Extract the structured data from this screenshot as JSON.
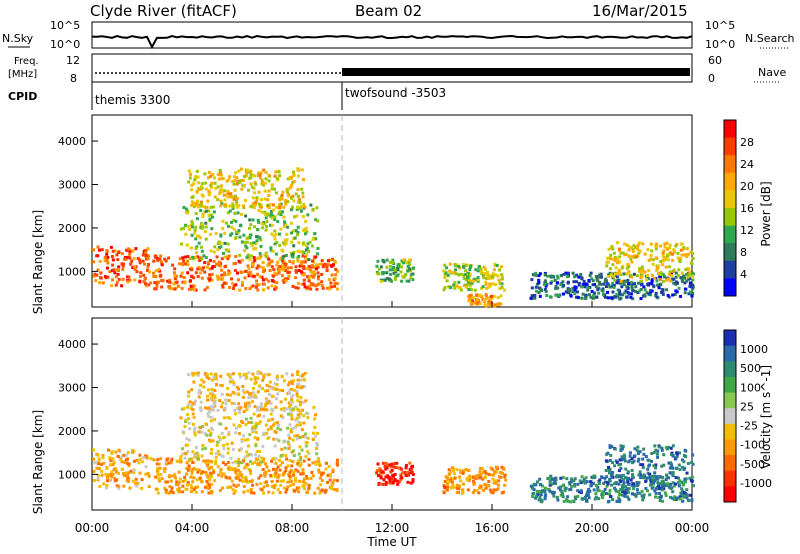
{
  "header": {
    "station": "Clyde River (fitACF)",
    "beam": "Beam 02",
    "date": "16/Mar/2015"
  },
  "summary_panels": {
    "nsky_label": "N.Sky",
    "nsearch_label": "N.Search",
    "nsky_ticks": [
      "10^5",
      "10^0"
    ],
    "nsearch_ticks": [
      "10^5",
      "10^0"
    ],
    "freq_label_1": "Freq.",
    "freq_label_2": "[MHz]",
    "freq_ticks": [
      "12",
      "8"
    ],
    "nave_label": "Nave",
    "nave_ticks": [
      "60",
      "0"
    ],
    "cpid_label": "CPID",
    "cpid_modes": [
      {
        "name": "themis 3300",
        "start_hour": 0
      },
      {
        "name": "twofsound -3503",
        "start_hour": 10
      }
    ]
  },
  "axes": {
    "xlabel": "Time UT",
    "x_ticks": [
      "00:00",
      "04:00",
      "08:00",
      "12:00",
      "16:00",
      "20:00",
      "00:00"
    ],
    "ylabel": "Slant Range [km]",
    "y_ticks": [
      "4000",
      "3000",
      "2000",
      "1000"
    ]
  },
  "power_scale": {
    "label": "Power [dB]",
    "ticks": [
      "28",
      "24",
      "20",
      "16",
      "12",
      "8",
      "4"
    ],
    "colors": [
      "#ff0000",
      "#ff3c00",
      "#ff7800",
      "#ffaa00",
      "#e8c800",
      "#9ac800",
      "#30a850",
      "#2e7a5a",
      "#1d3fa0",
      "#0000ff"
    ]
  },
  "velocity_scale": {
    "label": "Velocity [m s^-1]",
    "ticks": [
      "1000",
      "500",
      "100",
      "25",
      "-25",
      "-100",
      "-500",
      "-1000"
    ],
    "colors": [
      "#1b2fb0",
      "#2a6aa8",
      "#2e8a70",
      "#3ea848",
      "#88c850",
      "#c8c8c8",
      "#f0c000",
      "#ff9a00",
      "#ff6a00",
      "#ff3000",
      "#ff0000"
    ]
  },
  "chart_data": [
    {
      "type": "heatmap",
      "title": "Power",
      "xlabel": "Time UT",
      "ylabel": "Slant Range [km]",
      "x_range_hours": [
        0,
        24
      ],
      "y_range_km": [
        180,
        4600
      ],
      "colorbar": {
        "label": "Power [dB]",
        "range": [
          0,
          32
        ]
      },
      "blobs": [
        {
          "t0": 0.0,
          "t1": 2.3,
          "r0": 700,
          "r1": 1600,
          "mean_db": 26
        },
        {
          "t0": 2.4,
          "t1": 9.8,
          "r0": 600,
          "r1": 1400,
          "mean_db": 25
        },
        {
          "t0": 3.5,
          "t1": 9.0,
          "r0": 1300,
          "r1": 2600,
          "mean_db": 14
        },
        {
          "t0": 3.8,
          "t1": 8.5,
          "r0": 2500,
          "r1": 3400,
          "mean_db": 18
        },
        {
          "t0": 11.3,
          "t1": 12.8,
          "r0": 800,
          "r1": 1300,
          "mean_db": 12
        },
        {
          "t0": 14.0,
          "t1": 16.5,
          "r0": 600,
          "r1": 1200,
          "mean_db": 15
        },
        {
          "t0": 15.0,
          "t1": 16.3,
          "r0": 200,
          "r1": 500,
          "mean_db": 22
        },
        {
          "t0": 17.5,
          "t1": 24.0,
          "r0": 400,
          "r1": 1000,
          "mean_db": 6
        },
        {
          "t0": 20.5,
          "t1": 24.0,
          "r0": 800,
          "r1": 1700,
          "mean_db": 18
        }
      ]
    },
    {
      "type": "heatmap",
      "title": "Velocity",
      "xlabel": "Time UT",
      "ylabel": "Slant Range [km]",
      "x_range_hours": [
        0,
        24
      ],
      "y_range_km": [
        180,
        4600
      ],
      "colorbar": {
        "label": "Velocity [m s^-1]",
        "range": [
          -1000,
          1000
        ]
      },
      "blobs": [
        {
          "t0": 0.0,
          "t1": 2.3,
          "r0": 700,
          "r1": 1600,
          "mean_v": -300
        },
        {
          "t0": 2.4,
          "t1": 9.8,
          "r0": 600,
          "r1": 1400,
          "mean_v": -350
        },
        {
          "t0": 3.5,
          "t1": 9.0,
          "r0": 1300,
          "r1": 2600,
          "mean_v": -100
        },
        {
          "t0": 3.8,
          "t1": 8.5,
          "r0": 2500,
          "r1": 3400,
          "mean_v": -200
        },
        {
          "t0": 11.3,
          "t1": 12.8,
          "r0": 800,
          "r1": 1300,
          "mean_v": -800
        },
        {
          "t0": 14.0,
          "t1": 16.5,
          "r0": 600,
          "r1": 1200,
          "mean_v": -400
        },
        {
          "t0": 17.5,
          "t1": 24.0,
          "r0": 400,
          "r1": 1000,
          "mean_v": 600
        },
        {
          "t0": 20.5,
          "t1": 24.0,
          "r0": 800,
          "r1": 1700,
          "mean_v": 700
        }
      ]
    }
  ]
}
